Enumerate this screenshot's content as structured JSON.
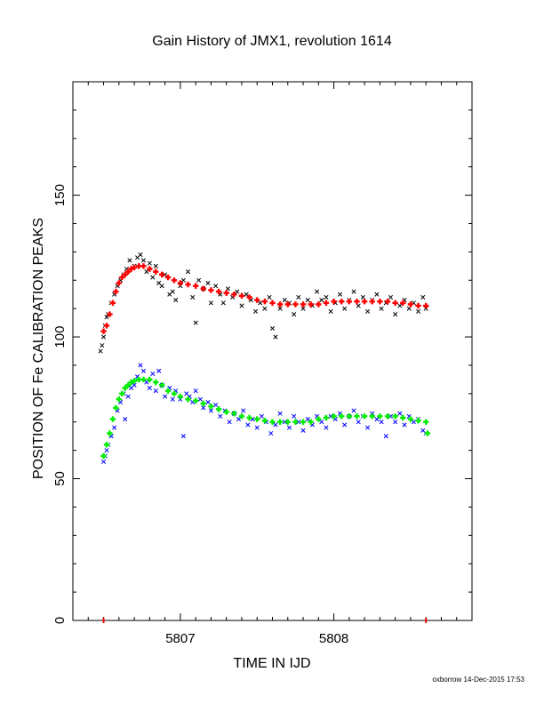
{
  "chart_data": {
    "type": "scatter",
    "title": "Gain History of JMX1, revolution 1614",
    "xlabel": "TIME IN IJD",
    "ylabel": "POSITION OF Fe CALIBRATION PEAKS",
    "xlim": [
      5806.3,
      5808.9
    ],
    "ylim": [
      0,
      190
    ],
    "x_ticks": [
      5807,
      5808
    ],
    "y_ticks": [
      0,
      50,
      100,
      150
    ],
    "grid": false,
    "series": [
      {
        "marker": "x",
        "color": "#000000",
        "points": [
          [
            5806.48,
            95
          ],
          [
            5806.49,
            97
          ],
          [
            5806.5,
            100
          ],
          [
            5806.51,
            104
          ],
          [
            5806.52,
            107
          ],
          [
            5806.53,
            108
          ],
          [
            5806.55,
            112
          ],
          [
            5806.57,
            115
          ],
          [
            5806.59,
            118
          ],
          [
            5806.61,
            120
          ],
          [
            5806.63,
            122
          ],
          [
            5806.65,
            124
          ],
          [
            5806.67,
            127
          ],
          [
            5806.7,
            125
          ],
          [
            5806.72,
            128
          ],
          [
            5806.74,
            129
          ],
          [
            5806.76,
            127
          ],
          [
            5806.78,
            123
          ],
          [
            5806.8,
            126
          ],
          [
            5806.82,
            121
          ],
          [
            5806.84,
            125
          ],
          [
            5806.86,
            119
          ],
          [
            5806.88,
            118
          ],
          [
            5806.9,
            122
          ],
          [
            5806.93,
            115
          ],
          [
            5806.95,
            116
          ],
          [
            5806.97,
            113
          ],
          [
            5807.0,
            118
          ],
          [
            5807.02,
            120
          ],
          [
            5807.05,
            123
          ],
          [
            5807.08,
            114
          ],
          [
            5807.1,
            105
          ],
          [
            5807.12,
            120
          ],
          [
            5807.15,
            117
          ],
          [
            5807.18,
            119
          ],
          [
            5807.2,
            112
          ],
          [
            5807.23,
            118
          ],
          [
            5807.26,
            115
          ],
          [
            5807.28,
            112
          ],
          [
            5807.31,
            117
          ],
          [
            5807.34,
            114
          ],
          [
            5807.37,
            116
          ],
          [
            5807.4,
            111
          ],
          [
            5807.43,
            115
          ],
          [
            5807.46,
            113
          ],
          [
            5807.49,
            109
          ],
          [
            5807.52,
            112
          ],
          [
            5807.55,
            110
          ],
          [
            5807.58,
            114
          ],
          [
            5807.6,
            103
          ],
          [
            5807.62,
            100
          ],
          [
            5807.65,
            110
          ],
          [
            5807.68,
            113
          ],
          [
            5807.71,
            112
          ],
          [
            5807.74,
            108
          ],
          [
            5807.77,
            114
          ],
          [
            5807.8,
            110
          ],
          [
            5807.83,
            113
          ],
          [
            5807.86,
            111
          ],
          [
            5807.89,
            116
          ],
          [
            5807.92,
            113
          ],
          [
            5807.95,
            114
          ],
          [
            5807.98,
            109
          ],
          [
            5808.01,
            112
          ],
          [
            5808.04,
            115
          ],
          [
            5808.07,
            110
          ],
          [
            5808.1,
            113
          ],
          [
            5808.13,
            116
          ],
          [
            5808.16,
            111
          ],
          [
            5808.19,
            114
          ],
          [
            5808.22,
            109
          ],
          [
            5808.25,
            113
          ],
          [
            5808.28,
            115
          ],
          [
            5808.31,
            110
          ],
          [
            5808.34,
            112
          ],
          [
            5808.37,
            114
          ],
          [
            5808.4,
            108
          ],
          [
            5808.43,
            111
          ],
          [
            5808.46,
            113
          ],
          [
            5808.49,
            110
          ],
          [
            5808.52,
            112
          ],
          [
            5808.55,
            109
          ],
          [
            5808.58,
            114
          ],
          [
            5808.6,
            110
          ]
        ]
      },
      {
        "marker": "+",
        "color": "#ff0000",
        "points": [
          [
            5806.5,
            102
          ],
          [
            5806.52,
            104
          ],
          [
            5806.54,
            108
          ],
          [
            5806.56,
            112
          ],
          [
            5806.58,
            116
          ],
          [
            5806.6,
            119
          ],
          [
            5806.62,
            121
          ],
          [
            5806.64,
            122
          ],
          [
            5806.66,
            123
          ],
          [
            5806.68,
            124
          ],
          [
            5806.7,
            124.5
          ],
          [
            5806.73,
            125
          ],
          [
            5806.76,
            125
          ],
          [
            5806.8,
            124
          ],
          [
            5806.84,
            123
          ],
          [
            5806.88,
            122
          ],
          [
            5806.92,
            121
          ],
          [
            5806.96,
            120
          ],
          [
            5807.0,
            119
          ],
          [
            5807.05,
            118.5
          ],
          [
            5807.1,
            118
          ],
          [
            5807.15,
            117
          ],
          [
            5807.2,
            116.5
          ],
          [
            5807.25,
            116
          ],
          [
            5807.3,
            115.5
          ],
          [
            5807.35,
            115
          ],
          [
            5807.4,
            114.5
          ],
          [
            5807.45,
            114
          ],
          [
            5807.5,
            113
          ],
          [
            5807.55,
            112.5
          ],
          [
            5807.6,
            112
          ],
          [
            5807.65,
            111.5
          ],
          [
            5807.7,
            111.5
          ],
          [
            5807.75,
            111.5
          ],
          [
            5807.8,
            111.5
          ],
          [
            5807.85,
            111.5
          ],
          [
            5807.9,
            111.5
          ],
          [
            5807.95,
            112
          ],
          [
            5808.0,
            112.5
          ],
          [
            5808.05,
            112.5
          ],
          [
            5808.1,
            112.5
          ],
          [
            5808.15,
            112.5
          ],
          [
            5808.2,
            112.5
          ],
          [
            5808.25,
            112.5
          ],
          [
            5808.3,
            112.5
          ],
          [
            5808.35,
            112.5
          ],
          [
            5808.4,
            112
          ],
          [
            5808.45,
            112
          ],
          [
            5808.5,
            111.5
          ],
          [
            5808.55,
            111
          ],
          [
            5808.6,
            111
          ]
        ]
      },
      {
        "marker": "x",
        "color": "#0000ff",
        "points": [
          [
            5806.5,
            56
          ],
          [
            5806.51,
            58
          ],
          [
            5806.52,
            60
          ],
          [
            5806.53,
            62
          ],
          [
            5806.55,
            65
          ],
          [
            5806.57,
            68
          ],
          [
            5806.59,
            74
          ],
          [
            5806.61,
            77
          ],
          [
            5806.63,
            80
          ],
          [
            5806.64,
            71
          ],
          [
            5806.66,
            79
          ],
          [
            5806.68,
            82
          ],
          [
            5806.7,
            83
          ],
          [
            5806.72,
            86
          ],
          [
            5806.74,
            90
          ],
          [
            5806.76,
            88
          ],
          [
            5806.78,
            84
          ],
          [
            5806.8,
            82
          ],
          [
            5806.82,
            87
          ],
          [
            5806.84,
            81
          ],
          [
            5806.86,
            88
          ],
          [
            5806.88,
            83
          ],
          [
            5806.9,
            79
          ],
          [
            5806.93,
            82
          ],
          [
            5806.95,
            78
          ],
          [
            5806.97,
            81
          ],
          [
            5807.0,
            78
          ],
          [
            5807.02,
            65
          ],
          [
            5807.04,
            80
          ],
          [
            5807.06,
            79
          ],
          [
            5807.08,
            77
          ],
          [
            5807.1,
            81
          ],
          [
            5807.13,
            78
          ],
          [
            5807.15,
            75
          ],
          [
            5807.18,
            77
          ],
          [
            5807.2,
            74
          ],
          [
            5807.23,
            76
          ],
          [
            5807.26,
            72
          ],
          [
            5807.29,
            74
          ],
          [
            5807.32,
            70
          ],
          [
            5807.35,
            73
          ],
          [
            5807.38,
            71
          ],
          [
            5807.41,
            74
          ],
          [
            5807.44,
            69
          ],
          [
            5807.47,
            71
          ],
          [
            5807.5,
            68
          ],
          [
            5807.53,
            72
          ],
          [
            5807.56,
            70
          ],
          [
            5807.59,
            66
          ],
          [
            5807.62,
            69
          ],
          [
            5807.65,
            73
          ],
          [
            5807.68,
            70
          ],
          [
            5807.71,
            68
          ],
          [
            5807.74,
            72
          ],
          [
            5807.77,
            70
          ],
          [
            5807.8,
            67
          ],
          [
            5807.83,
            71
          ],
          [
            5807.86,
            69
          ],
          [
            5807.89,
            72
          ],
          [
            5807.92,
            70
          ],
          [
            5807.95,
            68
          ],
          [
            5807.98,
            72
          ],
          [
            5808.01,
            71
          ],
          [
            5808.04,
            73
          ],
          [
            5808.07,
            69
          ],
          [
            5808.1,
            72
          ],
          [
            5808.13,
            74
          ],
          [
            5808.16,
            70
          ],
          [
            5808.19,
            72
          ],
          [
            5808.22,
            68
          ],
          [
            5808.25,
            73
          ],
          [
            5808.28,
            71
          ],
          [
            5808.31,
            70
          ],
          [
            5808.34,
            65
          ],
          [
            5808.37,
            72
          ],
          [
            5808.4,
            70
          ],
          [
            5808.43,
            73
          ],
          [
            5808.46,
            69
          ],
          [
            5808.49,
            72
          ],
          [
            5808.52,
            70
          ],
          [
            5808.55,
            71
          ],
          [
            5808.58,
            67
          ],
          [
            5808.6,
            66
          ]
        ]
      },
      {
        "marker": "+",
        "color": "#00ee00",
        "points": [
          [
            5806.5,
            58
          ],
          [
            5806.52,
            62
          ],
          [
            5806.54,
            66
          ],
          [
            5806.56,
            71
          ],
          [
            5806.58,
            75
          ],
          [
            5806.6,
            78
          ],
          [
            5806.62,
            80
          ],
          [
            5806.64,
            82
          ],
          [
            5806.66,
            83
          ],
          [
            5806.68,
            84
          ],
          [
            5806.7,
            84.5
          ],
          [
            5806.73,
            85
          ],
          [
            5806.76,
            85
          ],
          [
            5806.8,
            85
          ],
          [
            5806.84,
            84
          ],
          [
            5806.88,
            83
          ],
          [
            5806.92,
            81
          ],
          [
            5806.96,
            80
          ],
          [
            5807.0,
            79
          ],
          [
            5807.05,
            78
          ],
          [
            5807.1,
            77.5
          ],
          [
            5807.15,
            76.5
          ],
          [
            5807.2,
            75.5
          ],
          [
            5807.25,
            74.5
          ],
          [
            5807.3,
            73.5
          ],
          [
            5807.35,
            73
          ],
          [
            5807.4,
            72
          ],
          [
            5807.45,
            71.5
          ],
          [
            5807.5,
            71
          ],
          [
            5807.55,
            70.5
          ],
          [
            5807.6,
            70
          ],
          [
            5807.65,
            70
          ],
          [
            5807.7,
            70
          ],
          [
            5807.75,
            70
          ],
          [
            5807.8,
            70
          ],
          [
            5807.85,
            70
          ],
          [
            5807.9,
            71
          ],
          [
            5807.95,
            71.5
          ],
          [
            5808.0,
            72
          ],
          [
            5808.05,
            72
          ],
          [
            5808.1,
            72
          ],
          [
            5808.15,
            72
          ],
          [
            5808.2,
            72
          ],
          [
            5808.25,
            72
          ],
          [
            5808.3,
            72
          ],
          [
            5808.35,
            72
          ],
          [
            5808.4,
            72
          ],
          [
            5808.45,
            71.5
          ],
          [
            5808.5,
            71
          ],
          [
            5808.55,
            70.5
          ],
          [
            5808.6,
            70
          ],
          [
            5808.61,
            66
          ]
        ]
      }
    ],
    "axis_markers": [
      {
        "x": 5806.5,
        "color": "#ff0000"
      },
      {
        "x": 5808.6,
        "color": "#ff0000"
      }
    ]
  },
  "footer": "oxborrow 14-Dec-2015 17:53"
}
